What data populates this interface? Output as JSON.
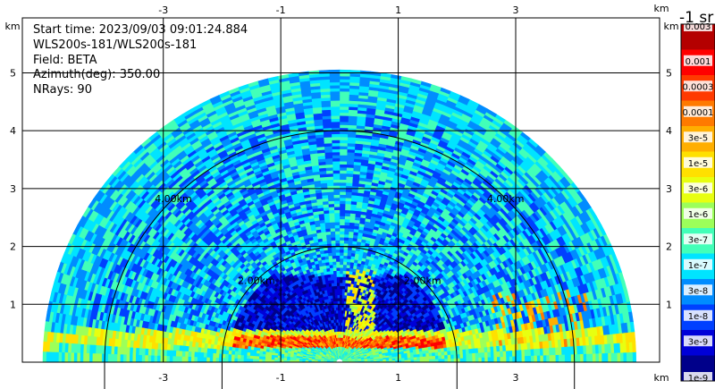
{
  "info": {
    "start_time": "Start time: 2023/09/03 09:01:24.884",
    "instrument": "WLS200s-181/WLS200s-181",
    "field": "Field: BETA",
    "azimuth": "Azimuth(deg): 350.00",
    "nrays": "NRays: 90"
  },
  "colorbar": {
    "title": "-1 sr",
    "labels": [
      "0.003",
      "0.001",
      "0.0003",
      "0.0001",
      "3e-5",
      "1e-5",
      "3e-6",
      "1e-6",
      "3e-7",
      "1e-7",
      "3e-8",
      "1e-8",
      "3e-9",
      "1e-9"
    ],
    "colors": [
      "#b40000",
      "#ff0000",
      "#ff3a00",
      "#ff7a00",
      "#ffae00",
      "#ffe000",
      "#e8ff10",
      "#9cff5a",
      "#42ffb8",
      "#00e4ff",
      "#008cff",
      "#0040ff",
      "#0000d8",
      "#00008a"
    ]
  },
  "chart_data": {
    "type": "heatmap",
    "title": "",
    "x_unit": "km",
    "y_unit": "km",
    "xlim": [
      -5.4,
      5.45
    ],
    "ylim": [
      0,
      5.95
    ],
    "x_ticks": [
      -3,
      -1,
      1,
      3
    ],
    "y_ticks": [
      1,
      2,
      3,
      4,
      5
    ],
    "range_rings": [
      {
        "radius_km": 2,
        "label": "2.00km"
      },
      {
        "radius_km": 4,
        "label": "4.00km"
      }
    ],
    "max_range_km": 5.05,
    "description_field": "BETA",
    "color_scale": "log",
    "value_range": [
      1e-09,
      0.003
    ]
  }
}
